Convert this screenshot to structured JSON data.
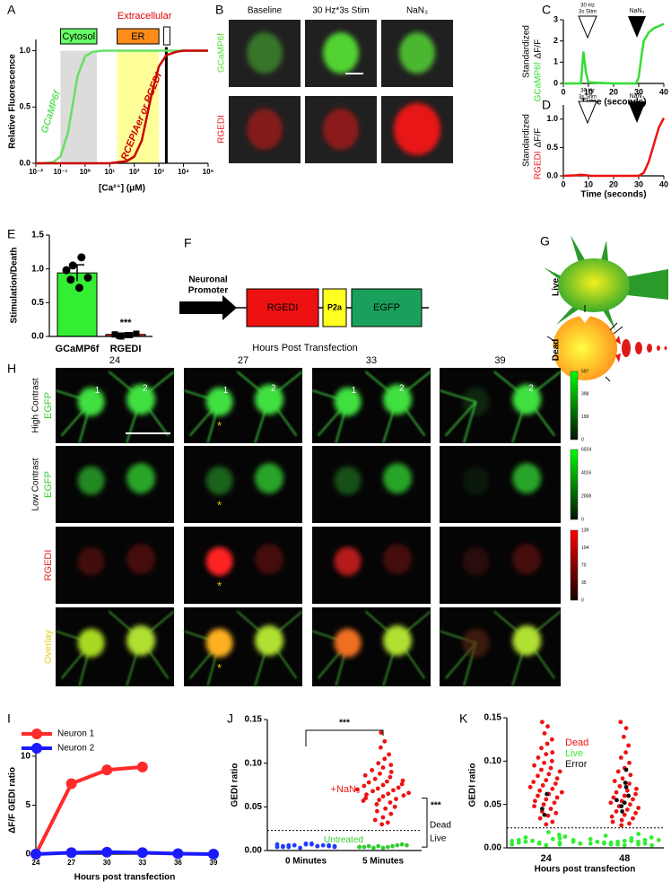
{
  "panel_labels": [
    "A",
    "B",
    "C",
    "D",
    "E",
    "F",
    "G",
    "H",
    "I",
    "J",
    "K"
  ],
  "panel_a": {
    "type": "line",
    "y_label": "Relative Fluorescence",
    "x_label": "[Ca²⁺] (μM)",
    "log_x": true,
    "xlim": [
      0.01,
      100000
    ],
    "ylim": [
      0,
      1.1
    ],
    "xticks": [
      {
        "value": 0.01,
        "label": "10⁻²"
      },
      {
        "value": 0.1,
        "label": "10⁻¹"
      },
      {
        "value": 1,
        "label": "10⁰"
      },
      {
        "value": 10,
        "label": "10¹"
      },
      {
        "value": 100,
        "label": "10²"
      },
      {
        "value": 1000,
        "label": "10³"
      },
      {
        "value": 10000,
        "label": "10⁴"
      },
      {
        "value": 100000,
        "label": "10⁵"
      }
    ],
    "yticks": [
      {
        "value": 0,
        "label": "0.0"
      },
      {
        "value": 0.5,
        "label": "0.5"
      },
      {
        "value": 1,
        "label": "1.0"
      }
    ],
    "regions": [
      {
        "label": "Cytosol",
        "range": [
          0.1,
          3
        ],
        "color": "#dcdcdc",
        "label_color": "#66ff66"
      },
      {
        "label": "ER",
        "range": [
          20,
          1000
        ],
        "color": "#ffff99",
        "label_color": "#ff8c1a"
      }
    ],
    "extracellular": {
      "label": "Extracellular",
      "value": 2000
    },
    "series": [
      {
        "name": "GCaMP6f",
        "color": "#66e066",
        "x": [
          0.01,
          0.02,
          0.05,
          0.1,
          0.2,
          0.5,
          1,
          2,
          5,
          10,
          100,
          1000,
          10000,
          100000
        ],
        "values": [
          0,
          0,
          0.01,
          0.06,
          0.27,
          0.78,
          0.95,
          0.99,
          1,
          1,
          1,
          1,
          1,
          1
        ]
      },
      {
        "name": "RCEPIAer or RGEDI",
        "color": "#cc0000",
        "x": [
          0.01,
          1,
          10,
          50,
          100,
          200,
          500,
          1000,
          2000,
          5000,
          10000,
          100000
        ],
        "values": [
          0,
          0,
          0,
          0.02,
          0.06,
          0.2,
          0.61,
          0.86,
          0.96,
          0.99,
          1,
          1
        ]
      }
    ]
  },
  "panel_b": {
    "columns": [
      "Baseline",
      "30 Hz*3s Stim",
      "NaN₃"
    ],
    "rows": [
      "GCaMP6f",
      "RGEDI"
    ]
  },
  "panel_c": {
    "type": "line",
    "y_label": "Standardized",
    "y_label_name": "GCaMP6f",
    "y_label_unit": "ΔF/F",
    "x_label": "Time (seconds)",
    "stim_label": [
      "30 Hz",
      "3s Stim"
    ],
    "nan_label": "NaN₃",
    "xlim": [
      0,
      40
    ],
    "xticks": [
      0,
      10,
      20,
      30,
      40
    ],
    "ylim": [
      0,
      3
    ],
    "yticks": [
      0,
      1,
      2,
      3
    ],
    "series": [
      {
        "name": "GCaMP6f",
        "color": "#33dd33",
        "x": [
          0,
          6,
          7,
          8,
          9,
          10,
          20,
          28,
          29,
          30,
          31,
          32,
          34,
          36,
          38,
          40
        ],
        "values": [
          0,
          0,
          0,
          1.5,
          0.5,
          0.05,
          0,
          0,
          0,
          0.3,
          1.2,
          2,
          2.4,
          2.6,
          2.7,
          2.8
        ]
      }
    ]
  },
  "panel_d": {
    "type": "line",
    "y_label": "Standardized",
    "y_label_name": "RGEDI",
    "y_label_unit": "ΔF/F",
    "x_label": "Time (seconds)",
    "stim_label": [
      "30 Hz",
      "3s Stim"
    ],
    "nan_label": "NaN₃",
    "xlim": [
      0,
      40
    ],
    "xticks": [
      0,
      10,
      20,
      30,
      40
    ],
    "ylim": [
      0,
      1.25
    ],
    "yticks": [
      {
        "value": 0,
        "label": "0.0"
      },
      {
        "value": 0.5,
        "label": "0.5"
      },
      {
        "value": 1,
        "label": "1.0"
      }
    ],
    "series": [
      {
        "name": "RGEDI",
        "color": "#ee1111",
        "x": [
          0,
          5,
          7,
          9,
          11,
          30,
          32,
          34,
          36,
          38,
          40
        ],
        "values": [
          0,
          0.01,
          0.02,
          0.01,
          0,
          0,
          0.05,
          0.25,
          0.55,
          0.85,
          1.02
        ]
      }
    ]
  },
  "panel_e": {
    "type": "bar",
    "y_label": "Stimulation/Death",
    "categories": [
      "GCaMP6f",
      "RGEDI"
    ],
    "values": [
      0.94,
      0.03
    ],
    "errors": [
      0.12,
      0.02
    ],
    "colors": [
      "#33ee33",
      "#ff2222"
    ],
    "points": [
      [
        0.98,
        1.17,
        1.05,
        0.87,
        0.72,
        0.84
      ],
      [
        0.03,
        0.02,
        0,
        0.04,
        0.02,
        0.01
      ]
    ],
    "significance": "***",
    "ylim": [
      0,
      1.5
    ],
    "yticks": [
      {
        "value": 0,
        "label": "0.0"
      },
      {
        "value": 0.5,
        "label": "0.5"
      },
      {
        "value": 1,
        "label": "1.0"
      },
      {
        "value": 1.5,
        "label": "1.5"
      }
    ]
  },
  "panel_f": {
    "promoter": [
      "Neuronal",
      "Promoter"
    ],
    "parts": [
      "RGEDI",
      "P2a",
      "EGFP"
    ]
  },
  "panel_g": {
    "states": [
      "Live",
      "Dead"
    ]
  },
  "panel_h": {
    "title": "Hours Post Transfection",
    "columns": [
      "24",
      "27",
      "33",
      "39"
    ],
    "rows": [
      {
        "label_1": "High Contrast",
        "label_2": "EGFP"
      },
      {
        "label_1": "Low Contrast",
        "label_2": "EGFP"
      },
      {
        "label_2": "RGEDI"
      },
      {
        "label_2": "Overlay"
      }
    ],
    "colorbars": [
      [
        "597",
        "398",
        "199",
        "0"
      ],
      [
        "6024",
        "4016",
        "2008",
        "0"
      ],
      [
        "139",
        "104",
        "70",
        "35",
        "0"
      ]
    ],
    "neuron_labels": [
      "1",
      "2"
    ],
    "marker": "*"
  },
  "panel_i": {
    "type": "line",
    "y_label": "ΔF/F GEDI ratio",
    "x_label": "Hours post transfection",
    "x": [
      24,
      27,
      30,
      33,
      36,
      39
    ],
    "xlim": [
      24,
      39
    ],
    "xticks": [
      24,
      27,
      30,
      33,
      36,
      39
    ],
    "ylim": [
      0,
      11
    ],
    "yticks": [
      0,
      5,
      10
    ],
    "series": [
      {
        "name": "Neuron 1",
        "color": "#ff2a2a",
        "values": [
          0,
          7.2,
          8.6,
          8.9,
          null,
          null
        ]
      },
      {
        "name": "Neuron 2",
        "color": "#1a1aff",
        "values": [
          0,
          0.15,
          0.2,
          0.15,
          0.05,
          0
        ]
      }
    ]
  },
  "panel_j": {
    "type": "scatter",
    "y_label": "GEDI ratio",
    "categories": [
      "0 Minutes",
      "5 Minutes"
    ],
    "ylim": [
      0,
      0.15
    ],
    "yticks": [
      {
        "value": 0,
        "label": "0.00"
      },
      {
        "value": 0.05,
        "label": "0.05"
      },
      {
        "value": 0.1,
        "label": "0.10"
      },
      {
        "value": 0.15,
        "label": "0.15"
      }
    ],
    "threshold": 0.023,
    "significance": [
      "***",
      "***"
    ],
    "threshold_labels": [
      "Dead",
      "Live"
    ],
    "series": [
      {
        "color": "#1f3cff",
        "values": [
          [
            0.004,
            0.005,
            0.006,
            0.005,
            0.007,
            0.004,
            0.006,
            0.008,
            0.005,
            0.006,
            0.003,
            0.007,
            0.005,
            0.006,
            0.004,
            0.008,
            0.006,
            0.005,
            0.007,
            0.004
          ],
          []
        ]
      },
      {
        "name": "Untreated",
        "color": "#33cc33",
        "values": [
          [],
          [
            0.004,
            0.005,
            0.003,
            0.006,
            0.004,
            0.005,
            0.007,
            0.003,
            0.004,
            0.006,
            0.005,
            0.004
          ]
        ]
      },
      {
        "name": "+NaN₃",
        "color": "#ee1111",
        "values": [
          [],
          [
            0.135,
            0.125,
            0.118,
            0.11,
            0.105,
            0.1,
            0.098,
            0.095,
            0.092,
            0.09,
            0.088,
            0.086,
            0.084,
            0.082,
            0.08,
            0.079,
            0.078,
            0.076,
            0.075,
            0.074,
            0.072,
            0.071,
            0.07,
            0.069,
            0.068,
            0.066,
            0.065,
            0.064,
            0.063,
            0.062,
            0.06,
            0.059,
            0.058,
            0.057,
            0.055,
            0.053,
            0.05,
            0.048,
            0.045,
            0.042,
            0.038,
            0.035,
            0.032,
            0.03
          ]
        ]
      }
    ]
  },
  "panel_k": {
    "type": "scatter",
    "y_label": "GEDI ratio",
    "x_label": "Hours post transfection",
    "categories": [
      "24",
      "48"
    ],
    "ylim": [
      0,
      0.15
    ],
    "yticks": [
      {
        "value": 0,
        "label": "0.00"
      },
      {
        "value": 0.05,
        "label": "0.05"
      },
      {
        "value": 0.1,
        "label": "0.10"
      },
      {
        "value": 0.15,
        "label": "0.15"
      }
    ],
    "threshold": 0.023,
    "series": [
      {
        "name": "Dead",
        "color": "#ee1111",
        "values": [
          [
            0.145,
            0.14,
            0.132,
            0.125,
            0.12,
            0.115,
            0.11,
            0.108,
            0.104,
            0.1,
            0.098,
            0.095,
            0.092,
            0.09,
            0.088,
            0.085,
            0.083,
            0.08,
            0.078,
            0.076,
            0.074,
            0.072,
            0.07,
            0.068,
            0.066,
            0.064,
            0.062,
            0.06,
            0.058,
            0.056,
            0.054,
            0.052,
            0.05,
            0.048,
            0.045,
            0.042,
            0.04,
            0.037,
            0.034,
            0.03,
            0.027
          ],
          [
            0.145,
            0.138,
            0.128,
            0.118,
            0.11,
            0.104,
            0.098,
            0.092,
            0.088,
            0.084,
            0.08,
            0.077,
            0.074,
            0.071,
            0.068,
            0.066,
            0.064,
            0.062,
            0.06,
            0.058,
            0.056,
            0.054,
            0.052,
            0.05,
            0.048,
            0.046,
            0.044,
            0.042,
            0.04,
            0.038,
            0.036,
            0.034,
            0.032,
            0.03,
            0.028,
            0.026
          ]
        ]
      },
      {
        "name": "Live",
        "color": "#33ee33",
        "values": [
          [
            0.004,
            0.006,
            0.008,
            0.005,
            0.01,
            0.012,
            0.007,
            0.003,
            0.009,
            0.015,
            0.006,
            0.004,
            0.011,
            0.008,
            0.005,
            0.018,
            0.007,
            0.009,
            0.003,
            0.006,
            0.013,
            0.005,
            0.008,
            0.004
          ],
          [
            0.005,
            0.007,
            0.004,
            0.009,
            0.011,
            0.006,
            0.003,
            0.008,
            0.014,
            0.005,
            0.007,
            0.01,
            0.004,
            0.006,
            0.016,
            0.008,
            0.005,
            0.012,
            0.003,
            0.007,
            0.009,
            0.004
          ]
        ]
      },
      {
        "name": "Error",
        "color": "#111111",
        "values": [
          [
            0.045,
            0.062,
            0.038
          ],
          [
            0.055,
            0.07,
            0.048,
            0.06,
            0.075,
            0.042,
            0.09,
            0.052
          ]
        ]
      }
    ]
  }
}
